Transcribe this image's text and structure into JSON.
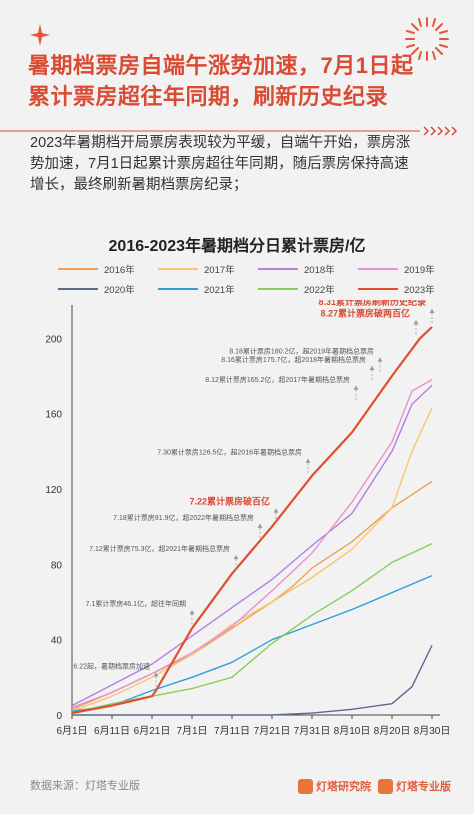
{
  "header": {
    "title_line1": "暑期档票房自端午涨势加速，7月1日起",
    "title_line2": "累计票房超往年同期，刷新历史纪录"
  },
  "intro": {
    "line1": "2023年暑期档开局票房表现较为平缓，自端午开始，票房涨",
    "line2": "势加速，7月1日起累计票房超往年同期，随后票房保持高速",
    "line3": "增长，最终刷新暑期档票房纪录；"
  },
  "colors": {
    "accent": "#d94b33",
    "2016": "#f0a050",
    "2017": "#f7c76a",
    "2018": "#b57ee0",
    "2019": "#e98fd4",
    "2020": "#5b6a8f",
    "2021": "#2f9ed8",
    "2022": "#8acd5a",
    "2023": "#e04e2e"
  },
  "chart_data": {
    "type": "line",
    "title": "2016-2023年暑期档分日累计票房/亿",
    "x_tick_labels": [
      "6月1日",
      "6月11日",
      "6月21日",
      "7月1日",
      "7月11日",
      "7月21日",
      "7月31日",
      "8月10日",
      "8月20日",
      "8月30日"
    ],
    "x_range": [
      1,
      91
    ],
    "ylim": [
      0,
      215
    ],
    "y_ticks": [
      0,
      40,
      80,
      120,
      160,
      200
    ],
    "grid": false,
    "legend_position": "top",
    "series": [
      {
        "name": "2016年",
        "x": [
          1,
          11,
          21,
          31,
          41,
          51,
          56,
          61,
          71,
          81,
          91
        ],
        "y": [
          3,
          12,
          22,
          32,
          46,
          60,
          68,
          78,
          92,
          110,
          124
        ]
      },
      {
        "name": "2017年",
        "x": [
          1,
          11,
          21,
          31,
          41,
          51,
          61,
          71,
          81,
          86,
          91
        ],
        "y": [
          2,
          10,
          20,
          32,
          48,
          60,
          73,
          88,
          110,
          140,
          163
        ]
      },
      {
        "name": "2018年",
        "x": [
          1,
          11,
          21,
          31,
          41,
          51,
          61,
          71,
          81,
          86,
          91
        ],
        "y": [
          5,
          16,
          27,
          42,
          57,
          72,
          90,
          107,
          140,
          165,
          175
        ]
      },
      {
        "name": "2019年",
        "x": [
          1,
          11,
          21,
          31,
          41,
          51,
          61,
          71,
          81,
          86,
          91
        ],
        "y": [
          4,
          12,
          22,
          33,
          47,
          66,
          86,
          113,
          145,
          172,
          178
        ]
      },
      {
        "name": "2020年",
        "x": [
          1,
          11,
          21,
          31,
          41,
          51,
          61,
          71,
          81,
          86,
          91
        ],
        "y": [
          0,
          0,
          0,
          0,
          0,
          0,
          1,
          3,
          6,
          15,
          37
        ]
      },
      {
        "name": "2021年",
        "x": [
          1,
          11,
          21,
          31,
          41,
          51,
          61,
          71,
          81,
          91
        ],
        "y": [
          2,
          5,
          13,
          20,
          28,
          40,
          48,
          56,
          65,
          74
        ]
      },
      {
        "name": "2022年",
        "x": [
          1,
          11,
          21,
          31,
          41,
          51,
          61,
          71,
          81,
          91
        ],
        "y": [
          1,
          6,
          10,
          14,
          20,
          38,
          53,
          66,
          81,
          91
        ]
      },
      {
        "name": "2023年",
        "x": [
          1,
          11,
          21,
          22,
          31,
          41,
          51,
          61,
          71,
          81,
          88,
          91
        ],
        "y": [
          1,
          5,
          10,
          13,
          46,
          75,
          100,
          127,
          150,
          180,
          200,
          206
        ]
      }
    ],
    "annotations": [
      {
        "text": "8.31累计票房刷新历史纪录",
        "x": 91,
        "y": 206,
        "highlight": true
      },
      {
        "text": "8.27累计票房破两百亿",
        "x": 87,
        "y": 200,
        "highlight": true
      },
      {
        "text": "8.18累计票房180.2亿，超2019年暑期档总票房",
        "x": 78,
        "y": 180.2,
        "highlight": false
      },
      {
        "text": "8.16累计票房175.7亿，超2018年暑期档总票房",
        "x": 76,
        "y": 175.7,
        "highlight": false
      },
      {
        "text": "8.12累计票房165.2亿，超2017年暑期档总票房",
        "x": 72,
        "y": 165.2,
        "highlight": false
      },
      {
        "text": "7.30累计票房126.5亿，超2016年暑期档总票房",
        "x": 60,
        "y": 126.5,
        "highlight": false
      },
      {
        "text": "7.22累计票房破百亿",
        "x": 52,
        "y": 100,
        "highlight": true
      },
      {
        "text": "7.18累计票房91.9亿，超2022年暑期档总票房",
        "x": 48,
        "y": 91.9,
        "highlight": false
      },
      {
        "text": "7.12累计票房75.3亿，超2021年暑期档总票房",
        "x": 42,
        "y": 75.3,
        "highlight": false
      },
      {
        "text": "7.1累计票房46.1亿，超往年同期",
        "x": 31,
        "y": 46.1,
        "highlight": false
      },
      {
        "text": "6.22起，暑期档票房加速",
        "x": 22,
        "y": 13,
        "highlight": false
      }
    ]
  },
  "footer": {
    "source": "数据来源：灯塔专业版",
    "logo1": "灯塔研究院",
    "logo2": "灯塔专业版"
  }
}
